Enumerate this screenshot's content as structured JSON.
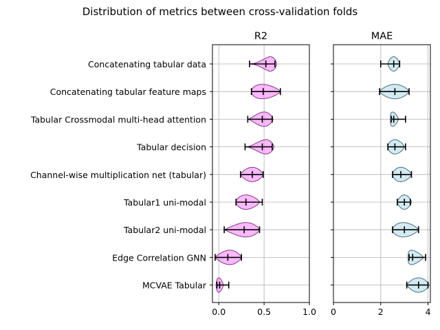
{
  "figure": {
    "title": "Distribution of metrics between cross-validation folds"
  },
  "categories": [
    "Concatenating tabular data",
    "Concatenating tabular feature maps",
    "Tabular Crossmodal multi-head attention",
    "Tabular decision",
    "Channel-wise multiplication net (tabular)",
    "Tabular1 uni-modal",
    "Tabular2 uni-modal",
    "Edge Correlation GNN",
    "MCVAE Tabular"
  ],
  "chart_data": [
    {
      "type": "violin",
      "title": "R2",
      "xlim": [
        -0.07,
        1.0
      ],
      "xticks": [
        0.0,
        0.5,
        1.0
      ],
      "xtick_labels": [
        "0.0",
        "0.5",
        "1.0"
      ],
      "grid": true,
      "fill_color": "#ff80ff",
      "edge_color": "#7a3a7a",
      "violins": [
        {
          "category": "Concatenating tabular data",
          "min": 0.34,
          "mean": 0.52,
          "max": 0.62,
          "kde_low": 0.34,
          "kde_high": 0.64,
          "peak": 0.57
        },
        {
          "category": "Concatenating tabular feature maps",
          "min": 0.36,
          "mean": 0.49,
          "max": 0.68,
          "kde_low": 0.36,
          "kde_high": 0.68,
          "peak": 0.48
        },
        {
          "category": "Tabular Crossmodal multi-head attention",
          "min": 0.32,
          "mean": 0.48,
          "max": 0.59,
          "kde_low": 0.33,
          "kde_high": 0.6,
          "peak": 0.5
        },
        {
          "category": "Tabular decision",
          "min": 0.29,
          "mean": 0.48,
          "max": 0.59,
          "kde_low": 0.31,
          "kde_high": 0.61,
          "peak": 0.52
        },
        {
          "category": "Channel-wise multiplication net (tabular)",
          "min": 0.24,
          "mean": 0.37,
          "max": 0.49,
          "kde_low": 0.24,
          "kde_high": 0.49,
          "peak": 0.37
        },
        {
          "category": "Tabular1 uni-modal",
          "min": 0.19,
          "mean": 0.3,
          "max": 0.48,
          "kde_low": 0.19,
          "kde_high": 0.45,
          "peak": 0.3
        },
        {
          "category": "Tabular2 uni-modal",
          "min": 0.06,
          "mean": 0.28,
          "max": 0.45,
          "kde_low": 0.06,
          "kde_high": 0.45,
          "peak": 0.3
        },
        {
          "category": "Edge Correlation GNN",
          "min": -0.04,
          "mean": 0.1,
          "max": 0.25,
          "kde_low": -0.04,
          "kde_high": 0.25,
          "peak": 0.12
        },
        {
          "category": "MCVAE Tabular",
          "min": -0.02,
          "mean": 0.01,
          "max": 0.11,
          "kde_low": -0.03,
          "kde_high": 0.05,
          "peak": 0.0
        }
      ]
    },
    {
      "type": "violin",
      "title": "MAE",
      "xlim": [
        0,
        4.1
      ],
      "xticks": [
        0,
        2,
        4
      ],
      "xtick_labels": [
        "0",
        "2",
        "4"
      ],
      "grid": true,
      "fill_color": "#add8e6",
      "edge_color": "#4a6a7a",
      "violins": [
        {
          "category": "Concatenating tabular data",
          "min": 2.0,
          "mean": 2.55,
          "max": 2.8,
          "kde_low": 2.3,
          "kde_high": 2.8,
          "peak": 2.55
        },
        {
          "category": "Concatenating tabular feature maps",
          "min": 1.95,
          "mean": 2.6,
          "max": 3.2,
          "kde_low": 1.95,
          "kde_high": 3.2,
          "peak": 2.6
        },
        {
          "category": "Tabular Crossmodal multi-head attention",
          "min": 2.45,
          "mean": 2.55,
          "max": 3.05,
          "kde_low": 2.4,
          "kde_high": 2.75,
          "peak": 2.5
        },
        {
          "category": "Tabular decision",
          "min": 2.3,
          "mean": 2.6,
          "max": 3.05,
          "kde_low": 2.3,
          "kde_high": 3.0,
          "peak": 2.6
        },
        {
          "category": "Channel-wise multiplication net (tabular)",
          "min": 2.5,
          "mean": 2.85,
          "max": 3.3,
          "kde_low": 2.5,
          "kde_high": 3.3,
          "peak": 2.85
        },
        {
          "category": "Tabular1 uni-modal",
          "min": 2.7,
          "mean": 3.0,
          "max": 3.25,
          "kde_low": 2.7,
          "kde_high": 3.3,
          "peak": 3.0
        },
        {
          "category": "Tabular2 uni-modal",
          "min": 2.5,
          "mean": 3.0,
          "max": 3.6,
          "kde_low": 2.5,
          "kde_high": 3.6,
          "peak": 2.95
        },
        {
          "category": "Edge Correlation GNN",
          "min": 3.2,
          "mean": 3.35,
          "max": 3.9,
          "kde_low": 3.15,
          "kde_high": 3.8,
          "peak": 3.3
        },
        {
          "category": "MCVAE Tabular",
          "min": 3.1,
          "mean": 3.6,
          "max": 4.0,
          "kde_low": 3.1,
          "kde_high": 4.05,
          "peak": 3.6
        }
      ]
    }
  ]
}
